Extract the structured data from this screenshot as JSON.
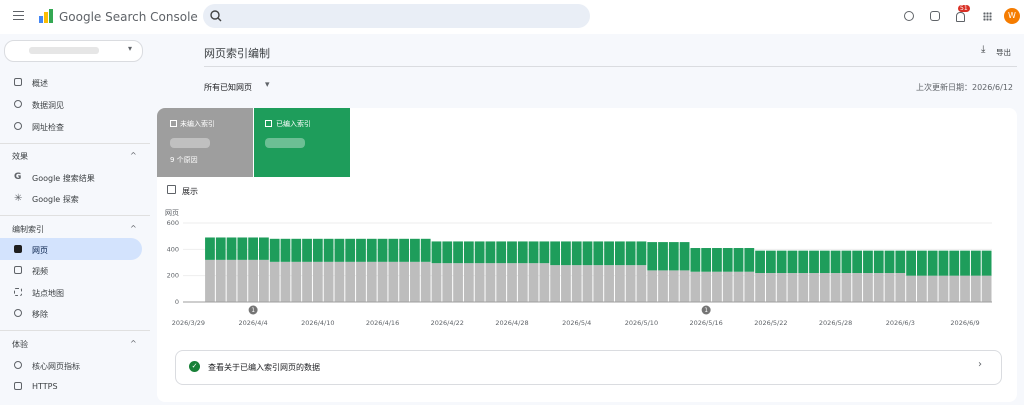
{
  "header": {
    "product": "Google Search Console",
    "notifications": "51",
    "avatar": "W"
  },
  "nav": {
    "top": [
      "概述",
      "数据洞见",
      "网址检查"
    ],
    "sections": [
      {
        "title": "效果",
        "items": [
          "Google 搜索结果",
          "Google 探索"
        ]
      },
      {
        "title": "编制索引",
        "items": [
          "网页",
          "视频",
          "站点地图",
          "移除"
        ]
      },
      {
        "title": "体验",
        "items": [
          "核心网页指标",
          "HTTPS"
        ]
      }
    ]
  },
  "page": {
    "title": "网页索引编制",
    "export": "导出",
    "filter": "所有已知网页",
    "updated": "上次更新日期：2026/6/12",
    "not_indexed_note": "9 个原因",
    "toggle": "展示",
    "link": "查看关于已编入索引网页的数据"
  },
  "chart_data": {
    "type": "stacked-bar",
    "y_label": "网页",
    "categories": [
      "2026/3/29",
      null,
      null,
      null,
      null,
      null,
      "2026/4/4",
      null,
      null,
      null,
      null,
      null,
      "2026/4/10",
      null,
      null,
      null,
      null,
      null,
      "2026/4/16",
      null,
      null,
      null,
      null,
      null,
      "2026/4/22",
      null,
      null,
      null,
      null,
      null,
      "2026/4/28",
      null,
      null,
      null,
      null,
      null,
      "2026/5/4",
      null,
      null,
      null,
      null,
      null,
      "2026/5/10",
      null,
      null,
      null,
      null,
      null,
      "2026/5/16",
      null,
      null,
      null,
      null,
      null,
      "2026/5/22",
      null,
      null,
      null,
      null,
      null,
      "2026/5/28",
      null,
      null,
      null,
      null,
      null,
      "2026/6/3",
      null,
      null,
      null,
      null,
      null,
      "2026/6/9",
      null,
      null
    ],
    "series": [
      {
        "name": "未编入索引",
        "color": "#bdbdbd",
        "values": [
          null,
          null,
          320,
          320,
          320,
          320,
          320,
          320,
          305,
          305,
          305,
          305,
          305,
          305,
          305,
          305,
          305,
          305,
          305,
          305,
          305,
          305,
          305,
          295,
          295,
          295,
          295,
          295,
          295,
          295,
          295,
          295,
          295,
          295,
          280,
          280,
          280,
          280,
          280,
          280,
          280,
          280,
          280,
          240,
          240,
          240,
          240,
          230,
          230,
          230,
          230,
          230,
          230,
          220,
          220,
          220,
          220,
          220,
          220,
          220,
          220,
          220,
          220,
          220,
          220,
          220,
          220,
          200,
          200,
          200,
          200,
          200,
          200,
          200,
          200
        ]
      },
      {
        "name": "已编入索引",
        "color": "#1e9d5b",
        "values": [
          null,
          null,
          170,
          170,
          170,
          170,
          170,
          170,
          175,
          175,
          175,
          175,
          175,
          175,
          175,
          175,
          175,
          175,
          175,
          175,
          175,
          175,
          175,
          165,
          165,
          165,
          165,
          165,
          165,
          165,
          165,
          165,
          165,
          165,
          180,
          180,
          180,
          180,
          180,
          180,
          180,
          180,
          180,
          215,
          215,
          215,
          215,
          180,
          180,
          180,
          180,
          180,
          180,
          170,
          170,
          170,
          170,
          170,
          170,
          170,
          170,
          170,
          170,
          170,
          170,
          170,
          170,
          190,
          190,
          190,
          190,
          190,
          190,
          190,
          190
        ]
      }
    ],
    "ylim": [
      0,
      600
    ],
    "yticks": [
      0,
      200,
      400,
      600
    ],
    "grid": true,
    "annotations": [
      {
        "x": "2026/4/4",
        "label": "1"
      },
      {
        "x": "2026/5/16",
        "label": "1"
      }
    ]
  }
}
